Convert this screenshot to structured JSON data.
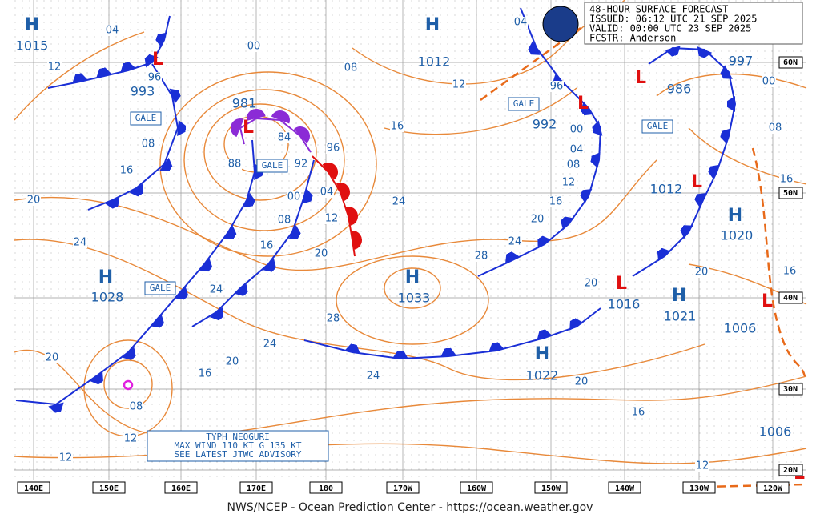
{
  "header": {
    "lines": [
      "48-HOUR SURFACE FORECAST",
      "ISSUED: 06:12 UTC 21 SEP 2025",
      "VALID:  00:00 UTC 23 SEP 2025",
      "FCSTR:  Anderson"
    ]
  },
  "footer": "NWS/NCEP - Ocean Prediction Center - https://ocean.weather.gov",
  "pressure_centers": [
    {
      "symbol": "H",
      "pressure": "1015"
    },
    {
      "symbol": "L",
      "pressure": "993"
    },
    {
      "symbol": "L",
      "pressure": "981"
    },
    {
      "symbol": "H",
      "pressure": "1012"
    },
    {
      "symbol": "L",
      "pressure": "992"
    },
    {
      "symbol": "L",
      "pressure": "986"
    },
    {
      "pressure": "997"
    },
    {
      "symbol": "L",
      "pressure": "1012"
    },
    {
      "symbol": "H",
      "pressure": "1020"
    },
    {
      "symbol": "H",
      "pressure": "1028"
    },
    {
      "symbol": "H",
      "pressure": "1033"
    },
    {
      "symbol": "L",
      "pressure": "1016"
    },
    {
      "symbol": "H",
      "pressure": "1021"
    },
    {
      "pressure": "1006"
    },
    {
      "symbol": "L"
    },
    {
      "symbol": "H",
      "pressure": "1022"
    },
    {
      "pressure": "1006"
    },
    {
      "symbol": "L"
    }
  ],
  "isobar_labels": [
    "04",
    "12",
    "96",
    "00",
    "08",
    "04",
    "12",
    "96",
    "16",
    "08",
    "16",
    "84",
    "88",
    "92",
    "96",
    "04",
    "00",
    "08",
    "12",
    "16",
    "20",
    "20",
    "24",
    "24",
    "24",
    "00",
    "04",
    "08",
    "12",
    "16",
    "20",
    "24",
    "28",
    "20",
    "20",
    "00",
    "08",
    "16",
    "16",
    "28",
    "24",
    "20",
    "16",
    "20",
    "08",
    "12",
    "12",
    "24",
    "20",
    "16",
    "12"
  ],
  "gale_labels": [
    "GALE",
    "GALE",
    "GALE",
    "GALE",
    "GALE"
  ],
  "advisory": {
    "lines": [
      "TYPH NEOGURI",
      "MAX WIND 110 KT G 135 KT",
      "SEE LATEST JTWC ADVISORY"
    ]
  },
  "longitude_labels": [
    "140E",
    "150E",
    "160E",
    "170E",
    "180",
    "170W",
    "160W",
    "150W",
    "140W",
    "130W",
    "120W"
  ],
  "latitude_labels": [
    "60N",
    "50N",
    "40N",
    "30N",
    "20N"
  ]
}
